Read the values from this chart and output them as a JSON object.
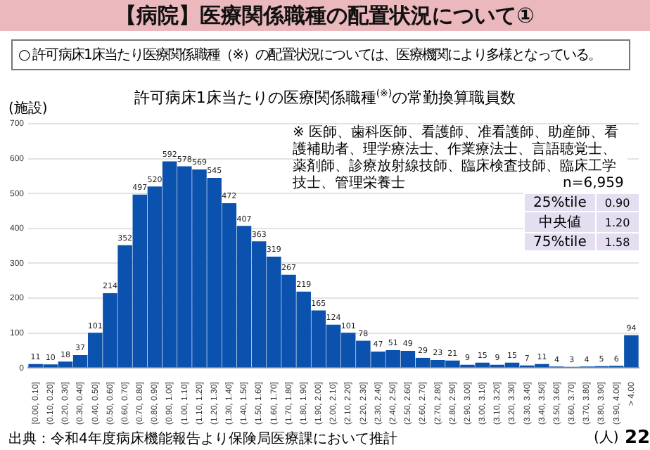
{
  "chart_data": {
    "type": "bar",
    "title": "【病院】医療関係職種の配置状況について①",
    "subtitle": "許可病床1床当たりの医療関係職種$^{(※)}$の常勤換算職員数",
    "ylabel": "(施設)",
    "xlabel": "(人)",
    "categories": [
      "[0.00, 0.10]",
      "(0.10, 0.20]",
      "(0.20, 0.30]",
      "(0.30, 0.40]",
      "(0.40, 0.50]",
      "(0.50, 0.60]",
      "(0.60, 0.70]",
      "(0.70, 0.80]",
      "(0.80, 0.90]",
      "(0.90, 1.00]",
      "(1.00, 1.10]",
      "(1.10, 1.20]",
      "(1.20, 1.30]",
      "(1.30, 1.40]",
      "(1.40, 1.50]",
      "(1.50, 1.60]",
      "(1.60, 1.70]",
      "(1.70, 1.80]",
      "(1.80, 1.90]",
      "(1.90, 2.00]",
      "(2.00, 2.10]",
      "(2.10, 2.20]",
      "(2.20, 2.30]",
      "(2.30, 2.40]",
      "(2.40, 2.50]",
      "(2.50, 2.60]",
      "(2.60, 2.70]",
      "(2.70, 2.80]",
      "(2.80, 2.90]",
      "(2.90, 3.00]",
      "(3.00, 3.10]",
      "(3.10, 3.20]",
      "(3.20, 3.30]",
      "(3.30, 3.40]",
      "(3.40, 3.50]",
      "(3.50, 3.60]",
      "(3.60, 3.70]",
      "(3.70, 3.80]",
      "(3.80, 3.90]",
      "(3.90, 4.00]",
      "> 4.00"
    ],
    "values": [
      11,
      10,
      18,
      37,
      101,
      214,
      352,
      497,
      520,
      592,
      578,
      569,
      545,
      472,
      407,
      363,
      319,
      267,
      219,
      165,
      124,
      101,
      78,
      47,
      51,
      49,
      29,
      23,
      21,
      9,
      15,
      9,
      15,
      7,
      11,
      4,
      3,
      4,
      5,
      6,
      94
    ],
    "color": "#0b52ae",
    "ylim": [
      0,
      700
    ],
    "yticks": [
      0,
      100,
      200,
      300,
      400,
      500,
      600,
      700
    ],
    "grid": "y",
    "data_labels": true,
    "annotations": [
      "○ 許可病床1床当たり医療関係職種（※）の配置状況については、医療機関により多様となっている。",
      "※ 医師、歯科医師、看護師、准看護師、助産師、看護補助者、理学療法士、作業療法士、言語聴覚士、薬剤師、診療放射線技師、臨床検査技師、臨床工学技士、管理栄養士",
      "n=6,959",
      "25%tile 0.90",
      "中央値 1.20",
      "75%tile 1.58",
      "出典：令和4年度病床機能報告より保険局医療課において推計",
      "22"
    ]
  }
}
